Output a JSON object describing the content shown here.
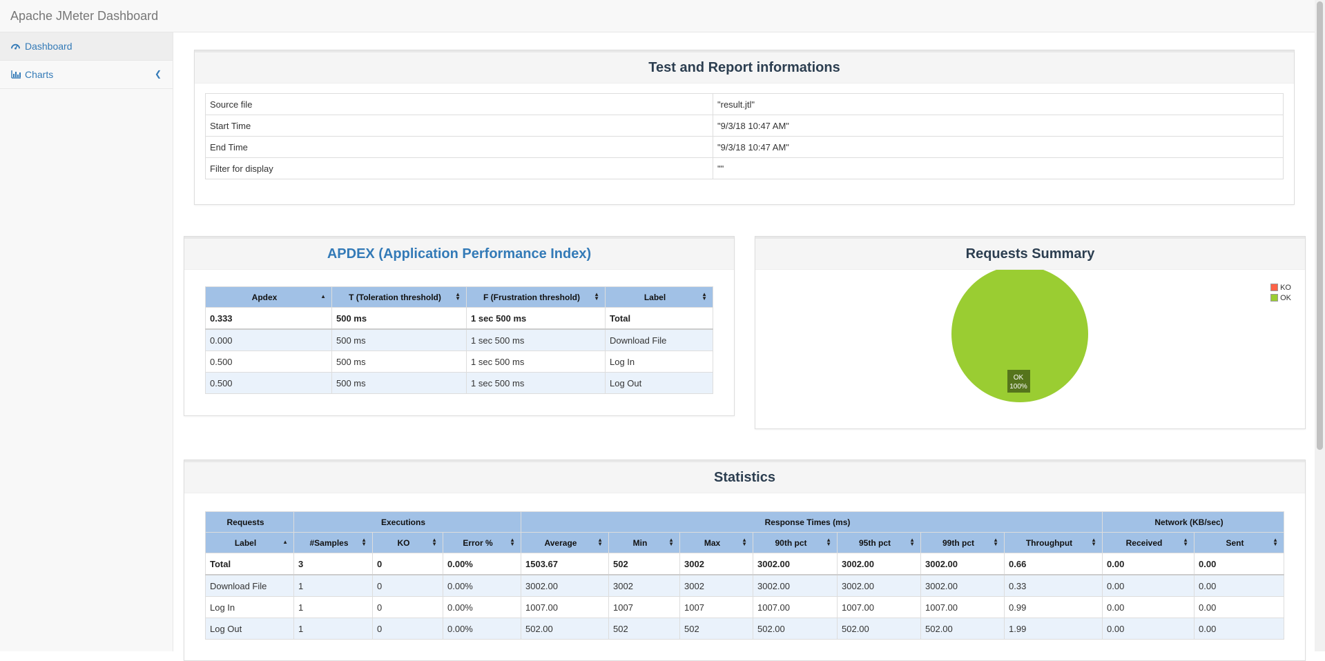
{
  "app": {
    "title": "Apache JMeter Dashboard"
  },
  "sidebar": {
    "items": [
      {
        "label": "Dashboard",
        "icon": "dashboard-icon",
        "active": true
      },
      {
        "label": "Charts",
        "icon": "bar-chart-icon",
        "expandable": true
      }
    ]
  },
  "test_info": {
    "title": "Test and Report informations",
    "rows": [
      {
        "key": "Source file",
        "value": "\"result.jtl\""
      },
      {
        "key": "Start Time",
        "value": "\"9/3/18 10:47 AM\""
      },
      {
        "key": "End Time",
        "value": "\"9/3/18 10:47 AM\""
      },
      {
        "key": "Filter for display",
        "value": "\"\""
      }
    ]
  },
  "apdex": {
    "title": "APDEX (Application Performance Index)",
    "headers": [
      "Apdex",
      "T (Toleration threshold)",
      "F (Frustration threshold)",
      "Label"
    ],
    "rows": [
      [
        "0.333",
        "500 ms",
        "1 sec 500 ms",
        "Total"
      ],
      [
        "0.000",
        "500 ms",
        "1 sec 500 ms",
        "Download File"
      ],
      [
        "0.500",
        "500 ms",
        "1 sec 500 ms",
        "Log In"
      ],
      [
        "0.500",
        "500 ms",
        "1 sec 500 ms",
        "Log Out"
      ]
    ]
  },
  "requests_summary": {
    "title": "Requests Summary",
    "legend": [
      "KO",
      "OK"
    ],
    "slice_label": "OK",
    "slice_percent": "100%",
    "colors": {
      "ok": "#9acd32",
      "ko": "#ff6347"
    }
  },
  "statistics": {
    "title": "Statistics",
    "groups": [
      "Requests",
      "Executions",
      "Response Times (ms)",
      "Network (KB/sec)"
    ],
    "headers": [
      "Label",
      "#Samples",
      "KO",
      "Error %",
      "Average",
      "Min",
      "Max",
      "90th pct",
      "95th pct",
      "99th pct",
      "Throughput",
      "Received",
      "Sent"
    ],
    "rows": [
      [
        "Total",
        "3",
        "0",
        "0.00%",
        "1503.67",
        "502",
        "3002",
        "3002.00",
        "3002.00",
        "3002.00",
        "0.66",
        "0.00",
        "0.00"
      ],
      [
        "Download File",
        "1",
        "0",
        "0.00%",
        "3002.00",
        "3002",
        "3002",
        "3002.00",
        "3002.00",
        "3002.00",
        "0.33",
        "0.00",
        "0.00"
      ],
      [
        "Log In",
        "1",
        "0",
        "0.00%",
        "1007.00",
        "1007",
        "1007",
        "1007.00",
        "1007.00",
        "1007.00",
        "0.99",
        "0.00",
        "0.00"
      ],
      [
        "Log Out",
        "1",
        "0",
        "0.00%",
        "502.00",
        "502",
        "502",
        "502.00",
        "502.00",
        "502.00",
        "1.99",
        "0.00",
        "0.00"
      ]
    ]
  }
}
